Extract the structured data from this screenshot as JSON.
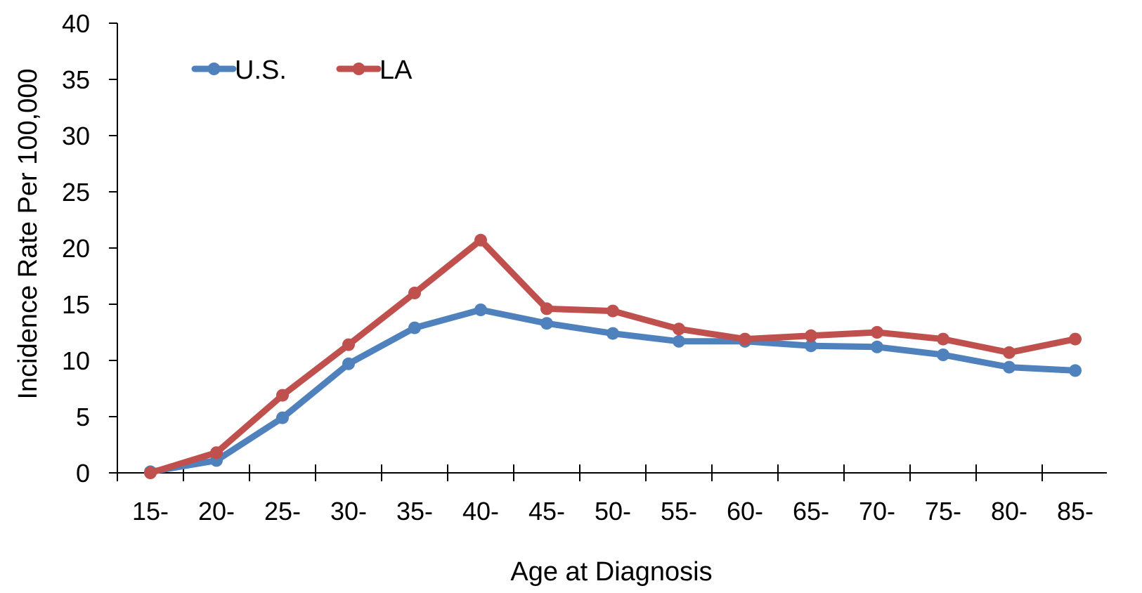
{
  "chart_data": {
    "type": "line",
    "title": "",
    "xlabel": "Age at Diagnosis",
    "ylabel": "Incidence Rate Per 100,000",
    "categories": [
      "15-",
      "20-",
      "25-",
      "30-",
      "35-",
      "40-",
      "45-",
      "50-",
      "55-",
      "60-",
      "65-",
      "70-",
      "75-",
      "80-",
      "85-"
    ],
    "ylim": [
      0,
      40
    ],
    "yticks": [
      "0",
      "5",
      "10",
      "15",
      "20",
      "25",
      "30",
      "35",
      "40"
    ],
    "grid": false,
    "legend_position": "top-left",
    "series": [
      {
        "name": "U.S.",
        "color": "#4F81BD",
        "values": [
          0.1,
          1.1,
          4.9,
          9.7,
          12.9,
          14.5,
          13.3,
          12.4,
          11.7,
          11.7,
          11.3,
          11.2,
          10.5,
          9.4,
          9.1
        ]
      },
      {
        "name": "LA",
        "color": "#C0504D",
        "values": [
          0.0,
          1.8,
          6.9,
          11.4,
          16.0,
          20.7,
          14.6,
          14.4,
          12.8,
          11.9,
          12.2,
          12.5,
          11.9,
          10.7,
          11.9
        ]
      }
    ]
  }
}
